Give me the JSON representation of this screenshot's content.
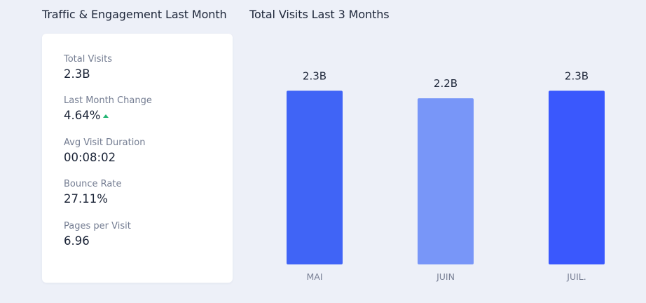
{
  "left_panel": {
    "title": "Traffic & Engagement Last Month",
    "metrics": [
      {
        "label": "Total Visits",
        "value": "2.3B"
      },
      {
        "label": "Last Month Change",
        "value": "4.64%",
        "trend_icon": "trend-up-icon",
        "trend_color": "#22b573"
      },
      {
        "label": "Avg Visit Duration",
        "value": "00:08:02"
      },
      {
        "label": "Bounce Rate",
        "value": "27.11%"
      },
      {
        "label": "Pages per Visit",
        "value": "6.96"
      }
    ]
  },
  "right_panel": {
    "title": "Total Visits Last 3 Months"
  },
  "chart_data": {
    "type": "bar",
    "title": "Total Visits Last 3 Months",
    "xlabel": "",
    "ylabel": "",
    "categories": [
      "MAI",
      "JUIN",
      "JUIL."
    ],
    "values": [
      2.3,
      2.2,
      2.3
    ],
    "value_labels": [
      "2.3B",
      "2.2B",
      "2.3B"
    ],
    "bar_colors": [
      "#4064f6",
      "#7896f8",
      "#3a58fd"
    ],
    "ylim": [
      0,
      2.35
    ],
    "grid": false,
    "legend": "none"
  }
}
